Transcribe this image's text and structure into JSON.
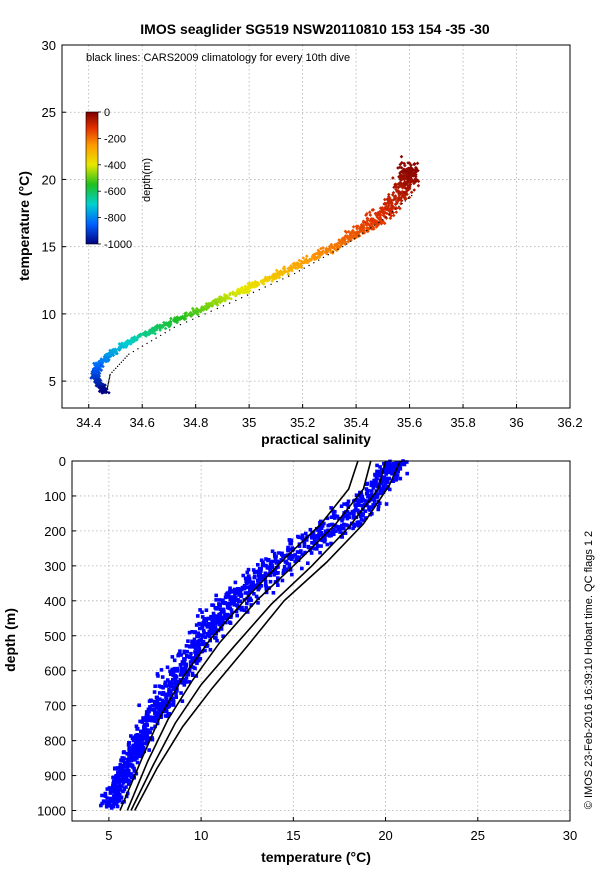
{
  "top_chart": {
    "title": "IMOS seaglider SG519 NSW20110810 153  154  -35  -30",
    "annotation": "black lines: CARS2009 climatology for every 10th dive",
    "xlabel": "practical salinity",
    "ylabel": "temperature (°C)",
    "colorbar": {
      "label": "depth(m)",
      "ticks": [
        "0",
        "-200",
        "-400",
        "-600",
        "-800",
        "-1000"
      ]
    }
  },
  "bottom_chart": {
    "xlabel": "temperature (°C)",
    "ylabel": "depth (m)",
    "side_text": "© IMOS 23-Feb-2016 16:39:10 Hobart time. QC flags 1  2"
  },
  "chart_data": [
    {
      "type": "scatter",
      "title": "IMOS seaglider SG519 NSW20110810 153  154  -35  -30",
      "xlabel": "practical salinity",
      "ylabel": "temperature (°C)",
      "xlim": [
        34.3,
        36.2
      ],
      "ylim": [
        3,
        30
      ],
      "xticks": [
        "34.4",
        "34.6",
        "34.8",
        "35",
        "35.2",
        "35.4",
        "35.6",
        "35.8",
        "36",
        "36.2"
      ],
      "yticks": [
        "5",
        "10",
        "15",
        "20",
        "25",
        "30"
      ],
      "grid": true,
      "color_by": "depth (m)",
      "colormap": [
        "#00007f",
        "#0060ff",
        "#00d0d0",
        "#20c020",
        "#e8e800",
        "#ff9900",
        "#e03000",
        "#7f0000"
      ],
      "series": [
        {
          "name": "glider observations",
          "points": [
            {
              "s": 34.46,
              "t": 4.2,
              "d": -1000
            },
            {
              "s": 34.44,
              "t": 4.8,
              "d": -960
            },
            {
              "s": 34.42,
              "t": 5.5,
              "d": -900
            },
            {
              "s": 34.44,
              "t": 6.3,
              "d": -840
            },
            {
              "s": 34.48,
              "t": 7.0,
              "d": -780
            },
            {
              "s": 34.54,
              "t": 7.8,
              "d": -720
            },
            {
              "s": 34.62,
              "t": 8.6,
              "d": -650
            },
            {
              "s": 34.72,
              "t": 9.5,
              "d": -580
            },
            {
              "s": 34.84,
              "t": 10.5,
              "d": -510
            },
            {
              "s": 34.96,
              "t": 11.6,
              "d": -440
            },
            {
              "s": 35.08,
              "t": 12.7,
              "d": -370
            },
            {
              "s": 35.2,
              "t": 13.8,
              "d": -300
            },
            {
              "s": 35.32,
              "t": 15.0,
              "d": -240
            },
            {
              "s": 35.42,
              "t": 16.3,
              "d": -180
            },
            {
              "s": 35.52,
              "t": 17.8,
              "d": -120
            },
            {
              "s": 35.58,
              "t": 19.2,
              "d": -70
            },
            {
              "s": 35.6,
              "t": 20.5,
              "d": -20
            }
          ]
        },
        {
          "name": "CARS2009 climatology",
          "points": [
            {
              "s": 34.47,
              "t": 4.5
            },
            {
              "s": 34.48,
              "t": 5.5
            },
            {
              "s": 34.55,
              "t": 7.0
            },
            {
              "s": 34.72,
              "t": 9.0
            },
            {
              "s": 34.95,
              "t": 11.0
            },
            {
              "s": 35.17,
              "t": 13.0
            },
            {
              "s": 35.35,
              "t": 15.0
            },
            {
              "s": 35.5,
              "t": 17.0
            },
            {
              "s": 35.62,
              "t": 19.0
            }
          ]
        }
      ]
    },
    {
      "type": "scatter",
      "xlabel": "temperature (°C)",
      "ylabel": "depth (m)",
      "xlim": [
        3,
        30
      ],
      "ylim": [
        1030,
        0
      ],
      "xticks": [
        "5",
        "10",
        "15",
        "20",
        "25",
        "30"
      ],
      "yticks": [
        "0",
        "100",
        "200",
        "300",
        "400",
        "500",
        "600",
        "700",
        "800",
        "900",
        "1000"
      ],
      "grid": true,
      "series": [
        {
          "name": "glider observations",
          "color": "#0000ff",
          "profile": [
            {
              "t": 20.5,
              "d": 0
            },
            {
              "t": 20.0,
              "d": 50
            },
            {
              "t": 19.2,
              "d": 100
            },
            {
              "t": 17.8,
              "d": 170
            },
            {
              "t": 15.8,
              "d": 240
            },
            {
              "t": 14.0,
              "d": 300
            },
            {
              "t": 12.5,
              "d": 370
            },
            {
              "t": 11.0,
              "d": 450
            },
            {
              "t": 9.8,
              "d": 530
            },
            {
              "t": 8.8,
              "d": 610
            },
            {
              "t": 7.8,
              "d": 700
            },
            {
              "t": 6.8,
              "d": 790
            },
            {
              "t": 5.9,
              "d": 880
            },
            {
              "t": 5.0,
              "d": 990
            }
          ]
        },
        {
          "name": "CARS2009 climatology",
          "color": "#000000",
          "profiles": [
            [
              {
                "t": 18.5,
                "d": 0
              },
              {
                "t": 18.0,
                "d": 80
              },
              {
                "t": 16.5,
                "d": 180
              },
              {
                "t": 14.5,
                "d": 280
              },
              {
                "t": 12.5,
                "d": 390
              },
              {
                "t": 10.5,
                "d": 510
              },
              {
                "t": 9.0,
                "d": 620
              },
              {
                "t": 7.8,
                "d": 730
              },
              {
                "t": 6.8,
                "d": 850
              },
              {
                "t": 5.6,
                "d": 1000
              }
            ],
            [
              {
                "t": 19.2,
                "d": 0
              },
              {
                "t": 18.8,
                "d": 80
              },
              {
                "t": 17.3,
                "d": 180
              },
              {
                "t": 15.2,
                "d": 290
              },
              {
                "t": 13.0,
                "d": 400
              },
              {
                "t": 11.0,
                "d": 520
              },
              {
                "t": 9.5,
                "d": 630
              },
              {
                "t": 8.2,
                "d": 740
              },
              {
                "t": 7.1,
                "d": 860
              },
              {
                "t": 6.0,
                "d": 1000
              }
            ],
            [
              {
                "t": 20.0,
                "d": 0
              },
              {
                "t": 19.6,
                "d": 80
              },
              {
                "t": 18.0,
                "d": 190
              },
              {
                "t": 16.0,
                "d": 300
              },
              {
                "t": 13.8,
                "d": 410
              },
              {
                "t": 11.8,
                "d": 530
              },
              {
                "t": 10.0,
                "d": 640
              },
              {
                "t": 8.6,
                "d": 750
              },
              {
                "t": 7.4,
                "d": 870
              },
              {
                "t": 6.2,
                "d": 1000
              }
            ],
            [
              {
                "t": 20.8,
                "d": 0
              },
              {
                "t": 20.2,
                "d": 70
              },
              {
                "t": 18.8,
                "d": 180
              },
              {
                "t": 16.8,
                "d": 290
              },
              {
                "t": 14.5,
                "d": 400
              },
              {
                "t": 12.5,
                "d": 530
              },
              {
                "t": 10.6,
                "d": 650
              },
              {
                "t": 9.0,
                "d": 760
              },
              {
                "t": 7.6,
                "d": 880
              },
              {
                "t": 6.4,
                "d": 1000
              }
            ]
          ]
        }
      ]
    }
  ]
}
